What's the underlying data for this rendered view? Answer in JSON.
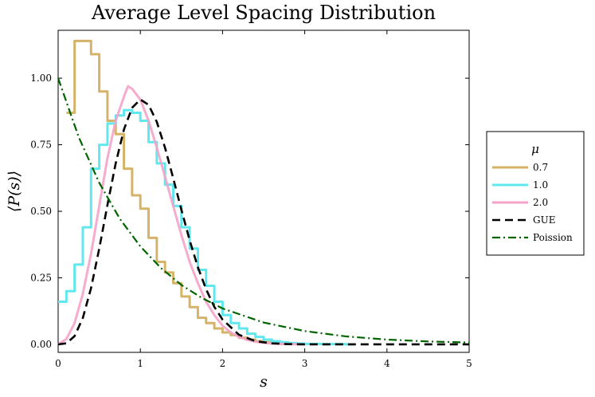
{
  "chart_data": {
    "type": "line",
    "title": "Average Level Spacing Distribution",
    "xlabel": "s",
    "ylabel": "⟨P(s)⟩",
    "xlim": [
      0,
      5
    ],
    "ylim": [
      -0.03,
      1.18
    ],
    "x_ticks": [
      0,
      1,
      2,
      3,
      4,
      5
    ],
    "x_tick_labels": [
      "0",
      "1",
      "2",
      "3",
      "4",
      "5"
    ],
    "y_ticks": [
      0.0,
      0.25,
      0.5,
      0.75,
      1.0
    ],
    "y_tick_labels": [
      "0.00",
      "0.25",
      "0.50",
      "0.75",
      "1.00"
    ],
    "grid": false,
    "legend": {
      "title": "μ",
      "position": "outside-right"
    },
    "series": [
      {
        "name": "0.7",
        "color": "#d5b469",
        "style": "step",
        "x": [
          0.1,
          0.2,
          0.3,
          0.4,
          0.5,
          0.6,
          0.7,
          0.8,
          0.9,
          1.0,
          1.1,
          1.2,
          1.3,
          1.4,
          1.5,
          1.6,
          1.7,
          1.8,
          1.9,
          2.0,
          2.1,
          2.2,
          2.3,
          2.4,
          2.5,
          2.6,
          2.7
        ],
        "values": [
          0.87,
          1.14,
          1.14,
          1.09,
          0.95,
          0.84,
          0.79,
          0.66,
          0.56,
          0.51,
          0.4,
          0.31,
          0.27,
          0.23,
          0.18,
          0.14,
          0.1,
          0.08,
          0.06,
          0.045,
          0.035,
          0.025,
          0.018,
          0.012,
          0.008,
          0.005,
          0.002
        ]
      },
      {
        "name": "1.0",
        "color": "#61e8ef",
        "style": "step",
        "x": [
          0.0,
          0.1,
          0.2,
          0.3,
          0.4,
          0.5,
          0.6,
          0.7,
          0.8,
          0.9,
          1.0,
          1.1,
          1.2,
          1.3,
          1.4,
          1.5,
          1.6,
          1.7,
          1.8,
          1.9,
          2.0,
          2.1,
          2.2,
          2.3,
          2.4,
          2.5,
          2.6,
          2.7,
          2.8,
          2.9,
          3.0,
          3.2,
          3.5
        ],
        "values": [
          0.16,
          0.2,
          0.3,
          0.44,
          0.66,
          0.75,
          0.83,
          0.86,
          0.88,
          0.87,
          0.84,
          0.76,
          0.68,
          0.6,
          0.52,
          0.44,
          0.36,
          0.28,
          0.22,
          0.16,
          0.11,
          0.08,
          0.06,
          0.04,
          0.028,
          0.018,
          0.012,
          0.008,
          0.005,
          0.003,
          0.002,
          0.001,
          0.0
        ]
      },
      {
        "name": "2.0",
        "color": "#f5a3c7",
        "style": "line",
        "x": [
          0.0,
          0.1,
          0.2,
          0.3,
          0.4,
          0.5,
          0.6,
          0.7,
          0.8,
          0.85,
          0.9,
          1.0,
          1.1,
          1.2,
          1.3,
          1.4,
          1.5,
          1.6,
          1.7,
          1.8,
          1.9,
          2.0,
          2.1,
          2.2,
          2.3,
          2.4,
          2.5,
          2.6,
          2.8,
          3.0
        ],
        "values": [
          0.0,
          0.02,
          0.08,
          0.19,
          0.34,
          0.52,
          0.7,
          0.84,
          0.93,
          0.97,
          0.96,
          0.92,
          0.84,
          0.74,
          0.63,
          0.52,
          0.41,
          0.31,
          0.23,
          0.16,
          0.11,
          0.07,
          0.045,
          0.028,
          0.017,
          0.01,
          0.006,
          0.003,
          0.001,
          0.0
        ]
      },
      {
        "name": "GUE",
        "color": "#000000",
        "style": "dash",
        "x": [
          0.0,
          0.1,
          0.2,
          0.3,
          0.4,
          0.5,
          0.6,
          0.7,
          0.8,
          0.9,
          1.0,
          1.1,
          1.2,
          1.3,
          1.4,
          1.5,
          1.6,
          1.7,
          1.8,
          1.9,
          2.0,
          2.2,
          2.4,
          2.6,
          2.8,
          3.0,
          3.5,
          4.0,
          4.5,
          5.0
        ],
        "values": [
          0.0,
          0.004,
          0.031,
          0.099,
          0.211,
          0.36,
          0.524,
          0.68,
          0.807,
          0.889,
          0.92,
          0.9,
          0.836,
          0.739,
          0.624,
          0.505,
          0.391,
          0.29,
          0.207,
          0.141,
          0.093,
          0.036,
          0.012,
          0.004,
          0.001,
          0.0,
          0.0,
          0.0,
          0.0,
          0.0
        ]
      },
      {
        "name": "Poission",
        "color": "#006400",
        "style": "dashdot",
        "x": [
          0.0,
          0.25,
          0.5,
          0.75,
          1.0,
          1.25,
          1.5,
          1.75,
          2.0,
          2.5,
          3.0,
          3.5,
          4.0,
          4.5,
          5.0
        ],
        "values": [
          1.0,
          0.779,
          0.607,
          0.472,
          0.368,
          0.287,
          0.223,
          0.174,
          0.135,
          0.082,
          0.05,
          0.03,
          0.018,
          0.011,
          0.007
        ]
      }
    ]
  }
}
